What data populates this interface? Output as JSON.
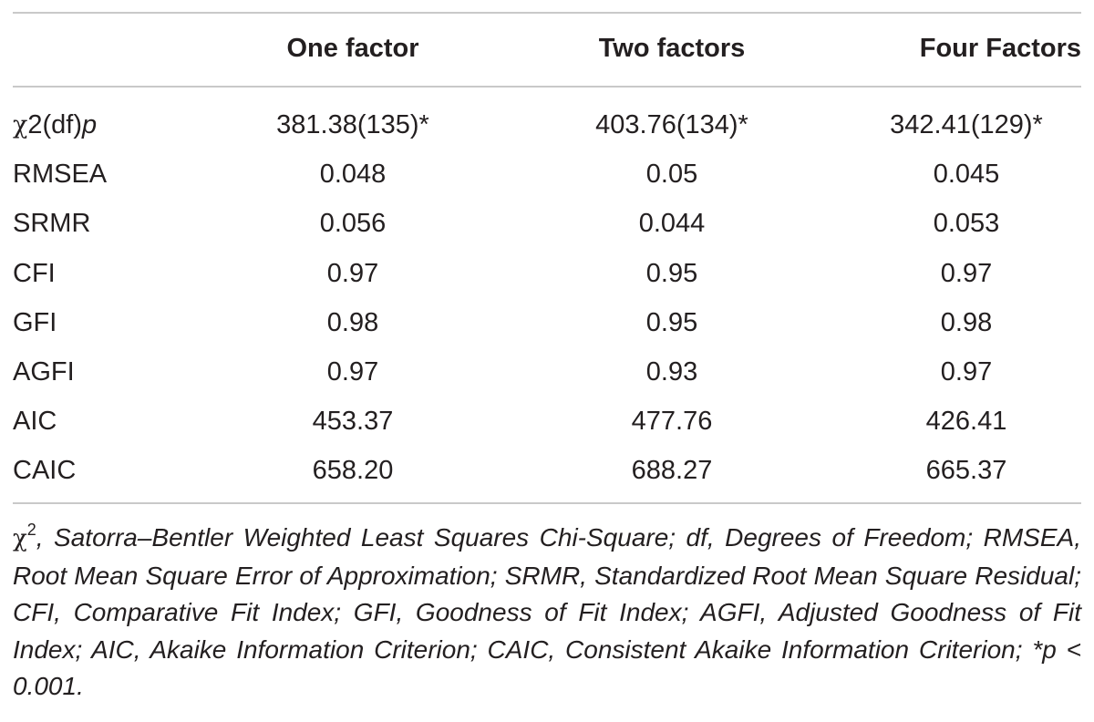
{
  "table": {
    "columns": [
      "",
      "One factor",
      "Two factors",
      "Four Factors"
    ],
    "rows": [
      {
        "label_symbol": "χ",
        "label_rest": "2(df)",
        "label_italic": "p",
        "values": [
          "381.38(135)*",
          "403.76(134)*",
          "342.41(129)*"
        ]
      },
      {
        "label": "RMSEA",
        "values": [
          "0.048",
          "0.05",
          "0.045"
        ]
      },
      {
        "label": "SRMR",
        "values": [
          "0.056",
          "0.044",
          "0.053"
        ]
      },
      {
        "label": "CFI",
        "values": [
          "0.97",
          "0.95",
          "0.97"
        ]
      },
      {
        "label": "GFI",
        "values": [
          "0.98",
          "0.95",
          "0.98"
        ]
      },
      {
        "label": "AGFI",
        "values": [
          "0.97",
          "0.93",
          "0.97"
        ]
      },
      {
        "label": "AIC",
        "values": [
          "453.37",
          "477.76",
          "426.41"
        ]
      },
      {
        "label": "CAIC",
        "values": [
          "658.20",
          "688.27",
          "665.37"
        ]
      }
    ]
  },
  "footnote": {
    "symbol": "χ",
    "superscript": "2",
    "text": ", Satorra–Bentler Weighted Least Squares Chi-Square; df, Degrees of Freedom; RMSEA, Root Mean Square Error of Approximation; SRMR, Standardized Root Mean Square Residual; CFI, Comparative Fit Index; GFI, Goodness of Fit Index; AGFI, Adjusted Goodness of Fit Index; AIC, Akaike Information Criterion; CAIC, Consistent Akaike Information Criterion; *p < 0.001."
  }
}
